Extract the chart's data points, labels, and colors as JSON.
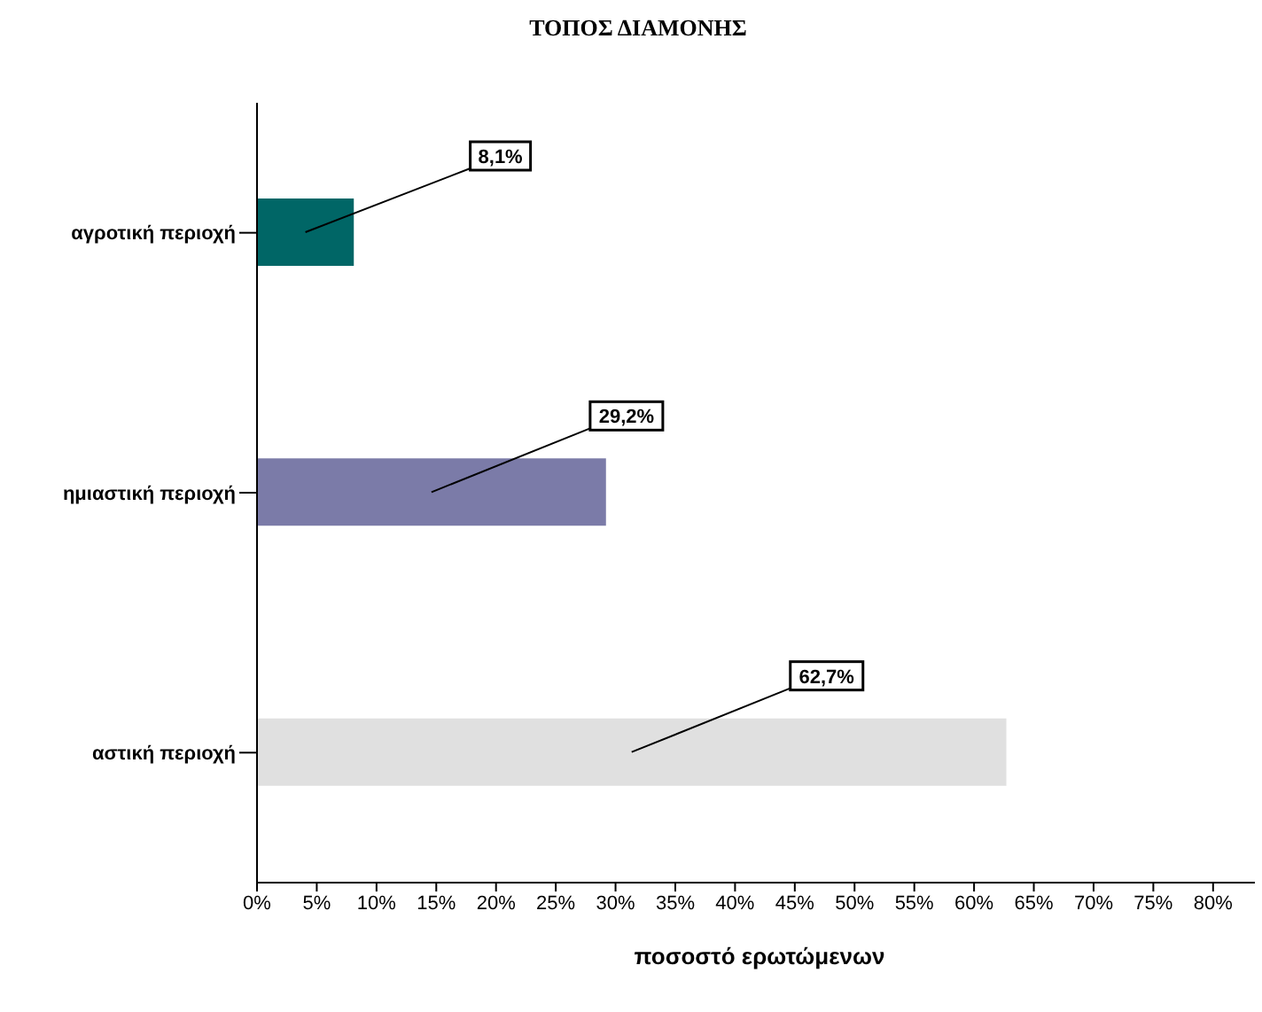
{
  "chart_data": {
    "type": "bar",
    "orientation": "horizontal",
    "title": "ΤΟΠΟΣ ΔΙΑΜΟΝΗΣ",
    "xlabel": "ποσοστό ερωτώμενων",
    "categories": [
      "αγροτική περιοχή",
      "ημιαστική περιοχή",
      "αστική περιοχή"
    ],
    "values": [
      8.1,
      29.2,
      62.7
    ],
    "value_labels": [
      "8,1%",
      "29,2%",
      "62,7%"
    ],
    "colors": [
      "#006666",
      "#7b7ba8",
      "#e0e0e0"
    ],
    "xlim": [
      0,
      83.5
    ],
    "xticks": [
      {
        "value": 0,
        "label": "0%"
      },
      {
        "value": 5,
        "label": "5%"
      },
      {
        "value": 10,
        "label": "10%"
      },
      {
        "value": 15,
        "label": "15%"
      },
      {
        "value": 20,
        "label": "20%"
      },
      {
        "value": 25,
        "label": "25%"
      },
      {
        "value": 30,
        "label": "30%"
      },
      {
        "value": 35,
        "label": "35%"
      },
      {
        "value": 40,
        "label": "40%"
      },
      {
        "value": 45,
        "label": "45%"
      },
      {
        "value": 50,
        "label": "50%"
      },
      {
        "value": 55,
        "label": "55%"
      },
      {
        "value": 60,
        "label": "60%"
      },
      {
        "value": 65,
        "label": "65%"
      },
      {
        "value": 70,
        "label": "70%"
      },
      {
        "value": 75,
        "label": "75%"
      },
      {
        "value": 80,
        "label": "80%"
      }
    ],
    "grid": false,
    "legend": false
  }
}
